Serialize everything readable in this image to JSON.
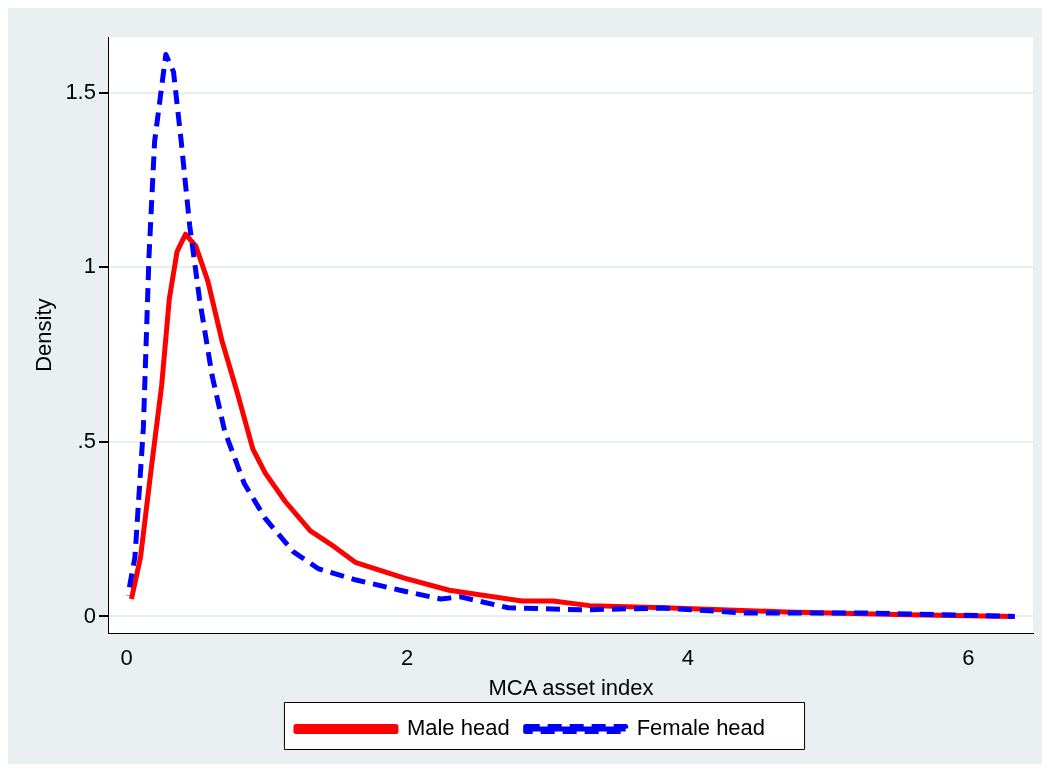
{
  "chart_data": {
    "type": "line",
    "xlabel": "MCA asset index",
    "ylabel": "Density",
    "xlim": [
      -0.125,
      6.46
    ],
    "xticks": [
      0,
      2,
      4,
      6
    ],
    "ylim": [
      -0.048,
      1.66
    ],
    "yticks": [
      0,
      {
        "value": 0.5,
        "label": ".5"
      },
      1,
      {
        "value": 1.5,
        "label": "1.5"
      }
    ],
    "grid": "y",
    "legend": "bottom",
    "marker": "none",
    "series": [
      {
        "name": "Male head",
        "color": "#ff0000",
        "line_style": "solid",
        "x": [
          0.035,
          0.1,
          0.175,
          0.25,
          0.305,
          0.36,
          0.42,
          0.495,
          0.58,
          0.68,
          0.79,
          0.9,
          0.99,
          1.13,
          1.31,
          1.48,
          1.63,
          1.98,
          2.3,
          2.82,
          3.04,
          3.3,
          3.83,
          4.7,
          5.57,
          6.33
        ],
        "values": [
          0.05,
          0.17,
          0.42,
          0.66,
          0.91,
          1.045,
          1.095,
          1.06,
          0.96,
          0.79,
          0.64,
          0.48,
          0.41,
          0.33,
          0.245,
          0.2,
          0.155,
          0.11,
          0.075,
          0.044,
          0.044,
          0.031,
          0.025,
          0.013,
          0.005,
          0.0
        ]
      },
      {
        "name": "Female head",
        "color": "#0000ff",
        "line_style": "dashed",
        "x": [
          0.01,
          0.06,
          0.12,
          0.16,
          0.2,
          0.28,
          0.335,
          0.39,
          0.45,
          0.52,
          0.61,
          0.7,
          0.84,
          0.99,
          1.19,
          1.37,
          1.63,
          1.95,
          2.24,
          2.38,
          2.72,
          3.24,
          3.83,
          4.41,
          5.28,
          6.33
        ],
        "values": [
          0.06,
          0.17,
          0.54,
          1.03,
          1.36,
          1.61,
          1.56,
          1.36,
          1.12,
          0.91,
          0.69,
          0.53,
          0.38,
          0.28,
          0.185,
          0.136,
          0.105,
          0.075,
          0.05,
          0.056,
          0.025,
          0.019,
          0.024,
          0.01,
          0.01,
          0.0
        ]
      }
    ]
  }
}
